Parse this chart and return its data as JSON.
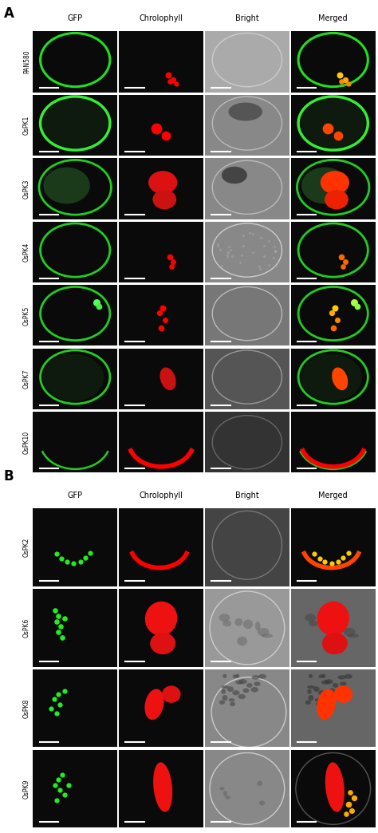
{
  "panel_A_label": "A",
  "panel_B_label": "B",
  "col_headers": [
    "GFP",
    "Chrolophyll",
    "Bright",
    "Merged"
  ],
  "panel_A_rows": [
    "PAN580",
    "OsPK1",
    "OsPK3",
    "OsPK4",
    "OsPK5",
    "OsPK7",
    "OsPK10"
  ],
  "panel_B_rows": [
    "OsPK2",
    "OsPK6",
    "OsPK8",
    "OsPK9"
  ],
  "outer_bg": "#ffffff",
  "header_color": "#000000",
  "label_fontsize": 5.5,
  "header_fontsize": 7,
  "panel_label_fontsize": 12
}
